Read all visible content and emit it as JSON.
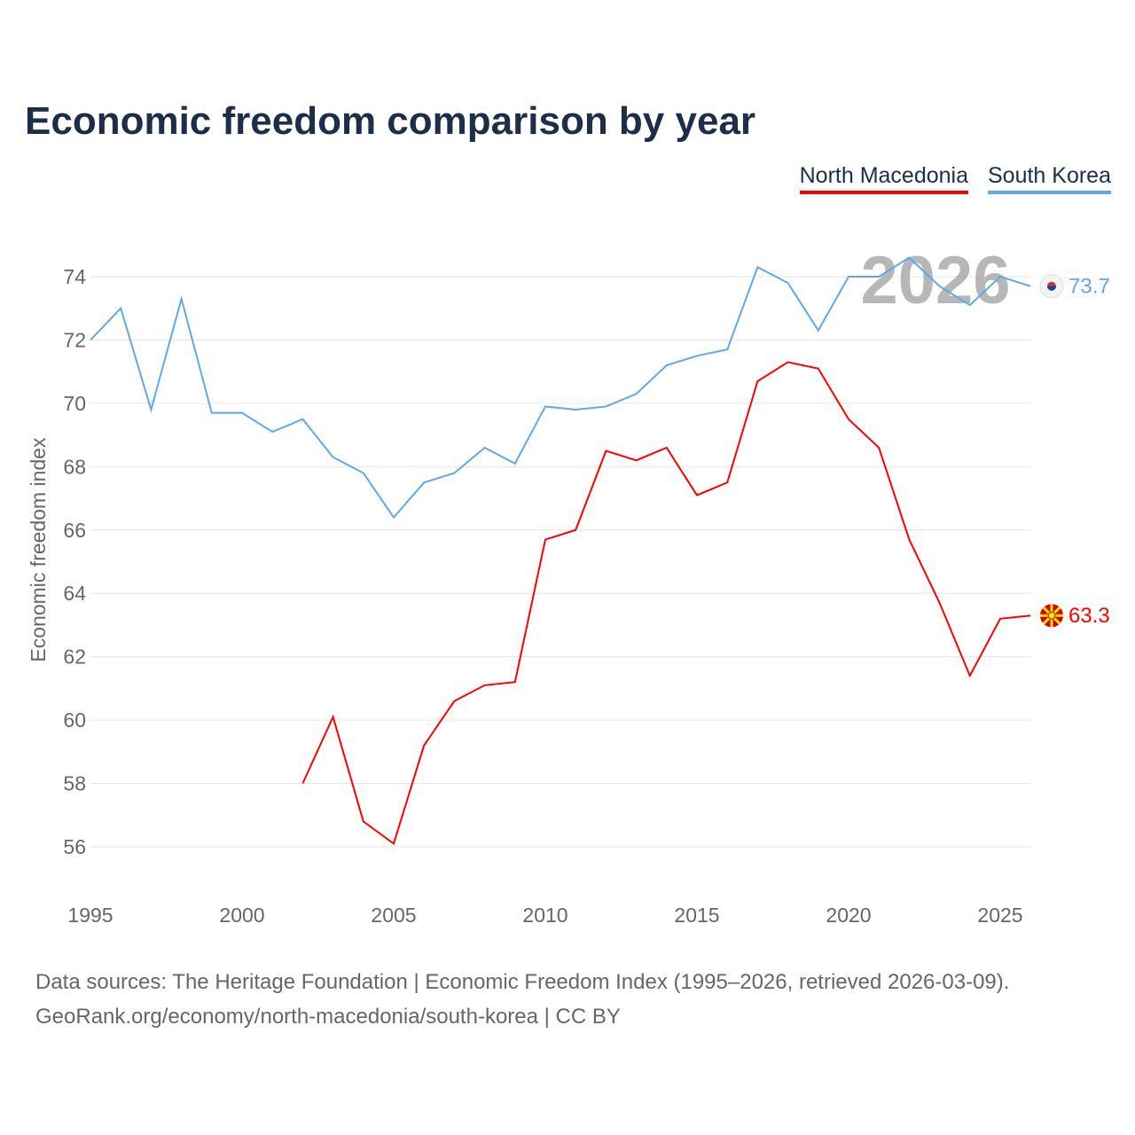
{
  "chart_data": {
    "type": "line",
    "title": "Economic freedom comparison by year",
    "xlabel": "",
    "ylabel": "Economic freedom index",
    "xlim": [
      1995,
      2026
    ],
    "ylim": [
      55,
      75
    ],
    "yticks": [
      56,
      58,
      60,
      62,
      64,
      66,
      68,
      70,
      72,
      74
    ],
    "xticks": [
      1995,
      2000,
      2005,
      2010,
      2015,
      2020,
      2025
    ],
    "grid": true,
    "legend_position": "top-right",
    "watermark_year": "2026",
    "series": [
      {
        "name": "North Macedonia",
        "color": "#ff0000",
        "end_label": "63.3",
        "x": [
          2002,
          2003,
          2004,
          2005,
          2006,
          2007,
          2008,
          2009,
          2010,
          2011,
          2012,
          2013,
          2014,
          2015,
          2016,
          2017,
          2018,
          2019,
          2020,
          2021,
          2022,
          2023,
          2024,
          2025,
          2026
        ],
        "y": [
          58.0,
          60.1,
          56.8,
          56.1,
          59.2,
          60.6,
          61.1,
          61.2,
          65.7,
          66.0,
          68.5,
          68.2,
          68.6,
          67.1,
          67.5,
          70.7,
          71.3,
          71.1,
          69.5,
          68.6,
          65.7,
          63.7,
          61.4,
          63.2,
          63.3
        ]
      },
      {
        "name": "South Korea",
        "color": "#5fa8ea",
        "end_label": "73.7",
        "x": [
          1995,
          1996,
          1997,
          1998,
          1999,
          2000,
          2001,
          2002,
          2003,
          2004,
          2005,
          2006,
          2007,
          2008,
          2009,
          2010,
          2011,
          2012,
          2013,
          2014,
          2015,
          2016,
          2017,
          2018,
          2019,
          2020,
          2021,
          2022,
          2023,
          2024,
          2025,
          2026
        ],
        "y": [
          72.0,
          73.0,
          69.8,
          73.3,
          69.7,
          69.7,
          69.1,
          69.5,
          68.3,
          67.8,
          66.4,
          67.5,
          67.8,
          68.6,
          68.1,
          69.9,
          69.8,
          69.9,
          70.3,
          71.2,
          71.5,
          71.7,
          74.3,
          73.8,
          72.3,
          74.0,
          74.0,
          74.6,
          73.7,
          73.1,
          74.0,
          73.7
        ]
      }
    ]
  },
  "footer": {
    "line1": "Data sources: The Heritage Foundation | Economic Freedom Index (1995–2026, retrieved 2026-03-09).",
    "line2": "GeoRank.org/economy/north-macedonia/south-korea | CC BY"
  }
}
